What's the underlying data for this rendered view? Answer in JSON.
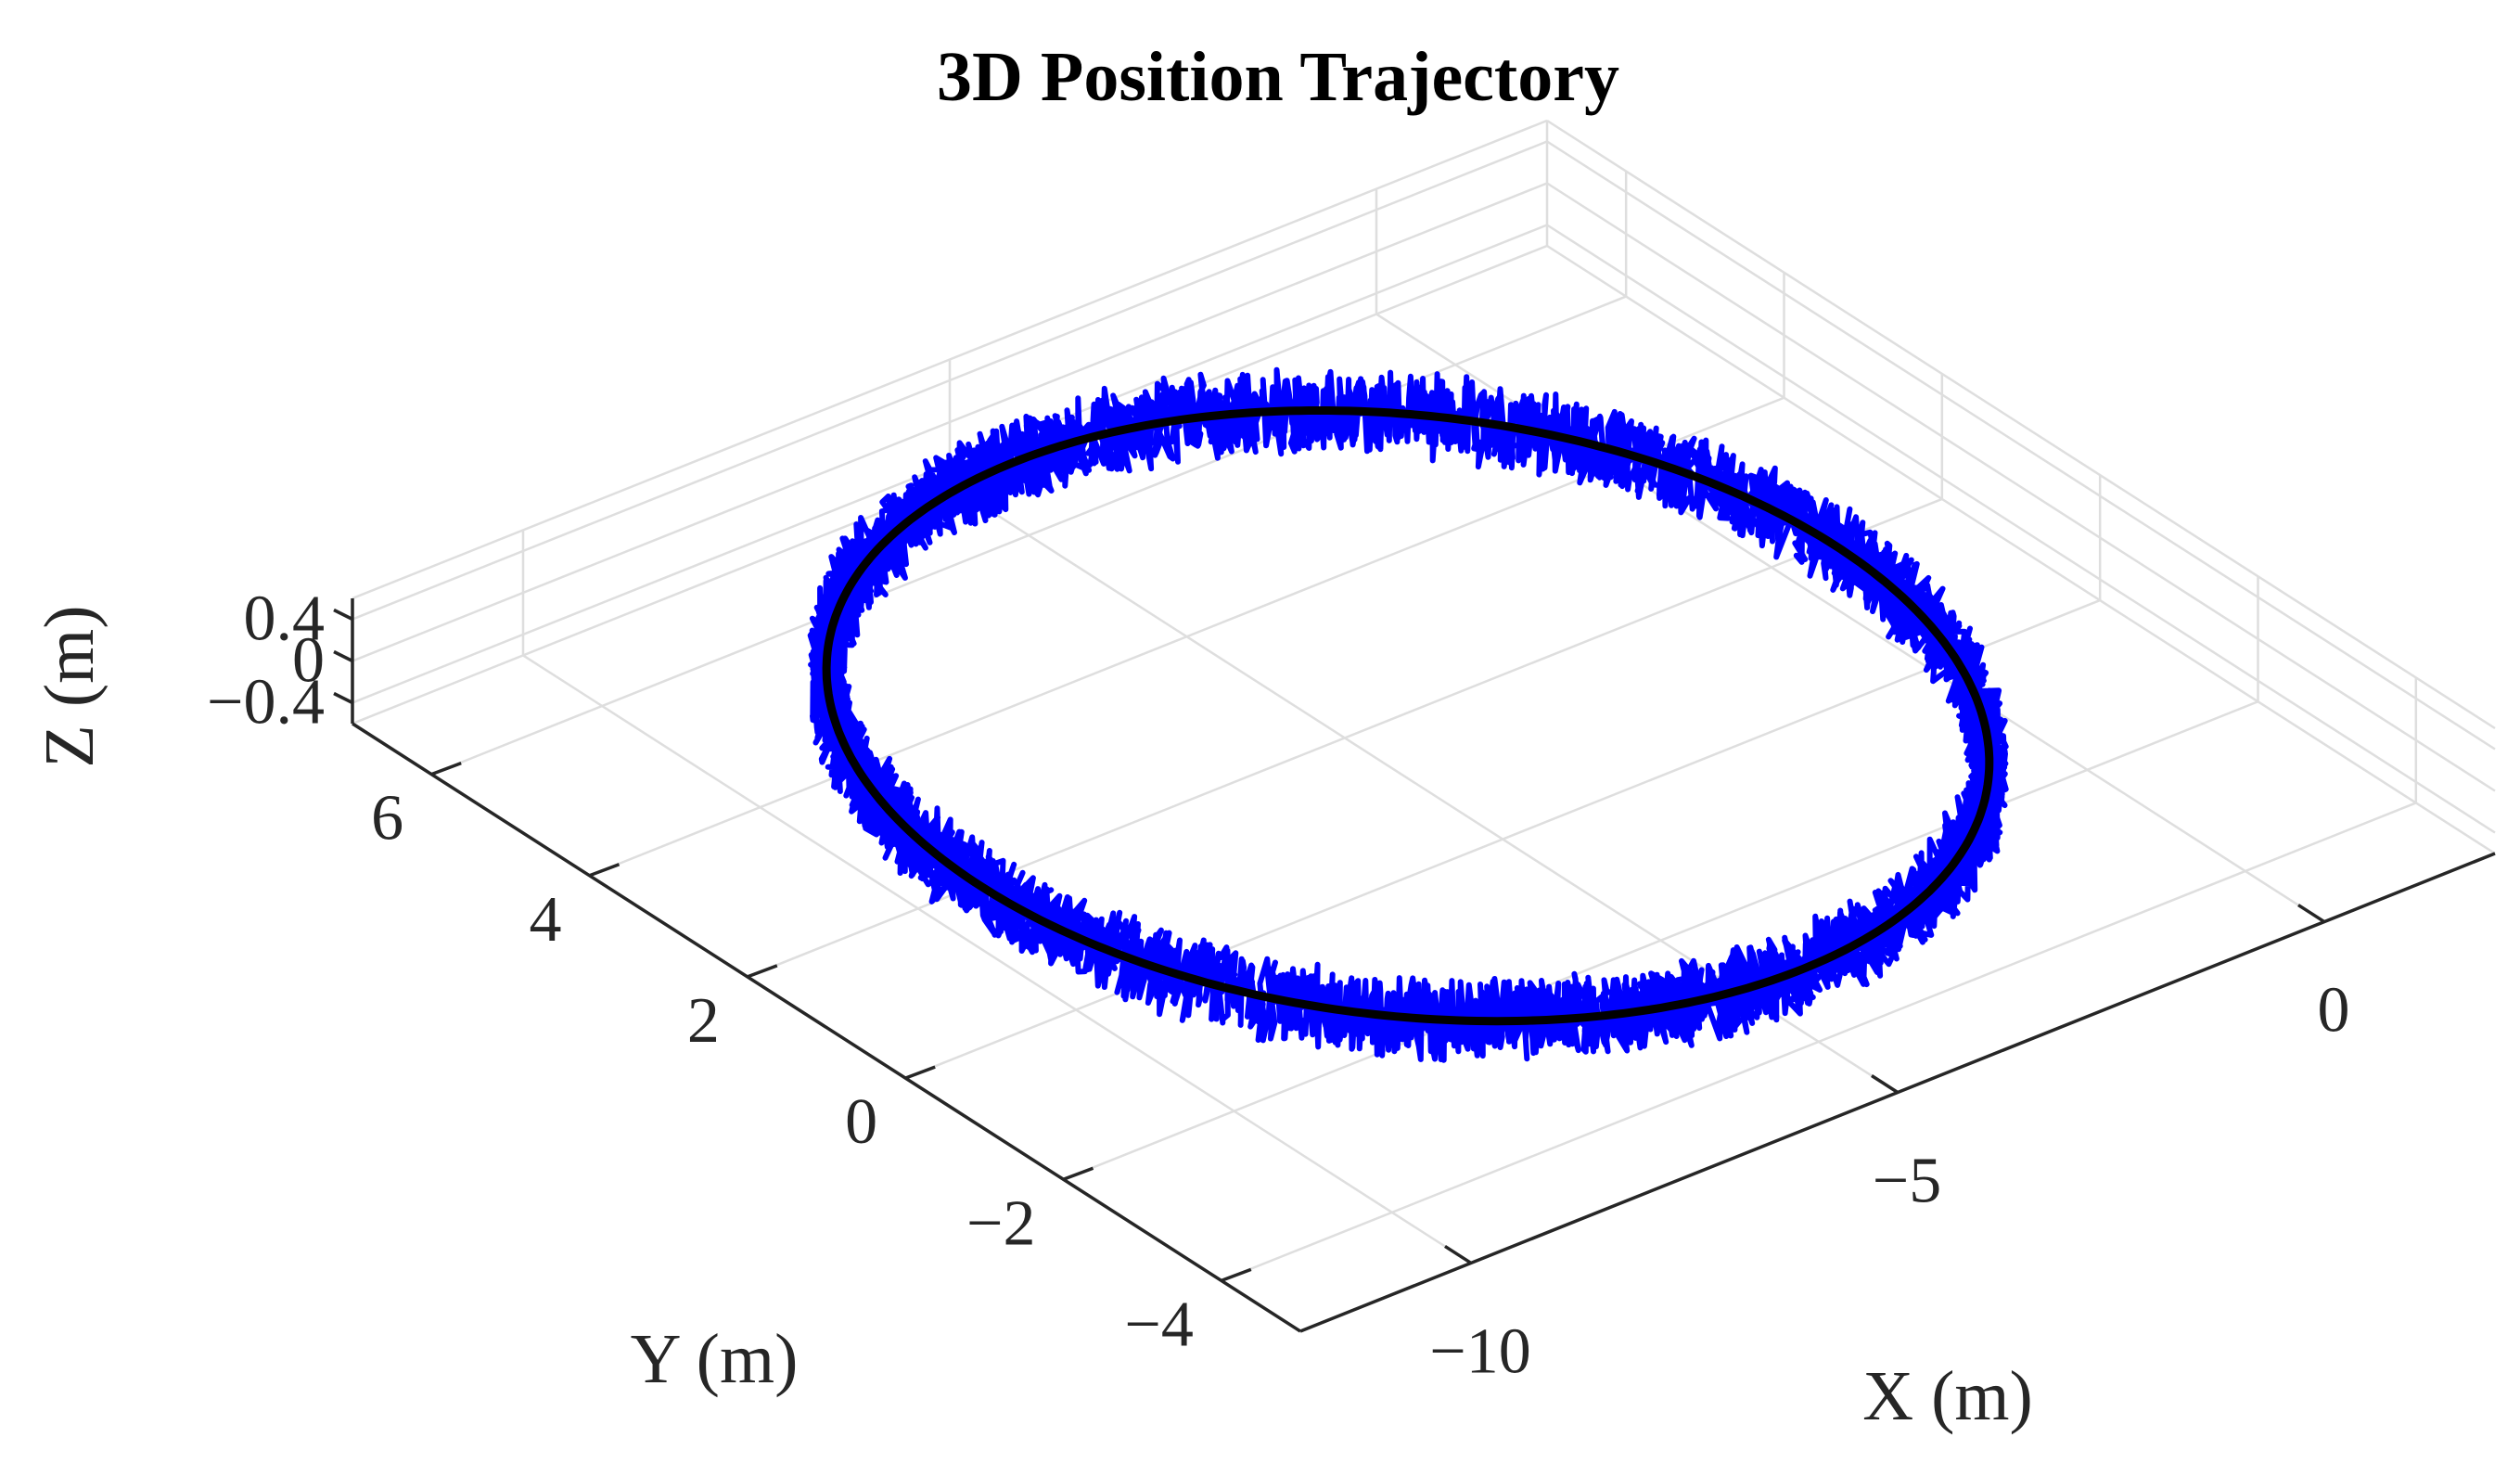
{
  "chart_data": {
    "type": "line3d",
    "title": "3D Position Trajectory",
    "xlabel": "X (m)",
    "ylabel": "Y (m)",
    "zlabel": "Z (m)",
    "xlim": [
      -12,
      2
    ],
    "ylim": [
      -5,
      7
    ],
    "zlim": [
      -0.6,
      0.6
    ],
    "x_ticks": [
      -10,
      -5,
      0
    ],
    "x_tick_labels": [
      "−10",
      "−5",
      "0"
    ],
    "y_ticks": [
      -4,
      -2,
      0,
      2,
      4,
      6
    ],
    "y_tick_labels": [
      "−4",
      "−2",
      "0",
      "2",
      "4",
      "6"
    ],
    "z_ticks": [
      -0.4,
      0,
      0.4
    ],
    "z_tick_labels": [
      "−0.4",
      "0",
      "0.4"
    ],
    "grid": true,
    "series": [
      {
        "style": "reference",
        "color": "#000000",
        "shape": "circle",
        "center": [
          -5,
          1.2,
          0
        ],
        "radius": 5,
        "z": 0
      },
      {
        "style": "measured",
        "color": "#0000ff",
        "shape": "noisy circle",
        "center": [
          -5,
          1.2,
          0
        ],
        "radius": 5,
        "z_noise_amplitude": 0.35,
        "xy_noise_amplitude": 0.15,
        "laps": 2
      }
    ]
  }
}
